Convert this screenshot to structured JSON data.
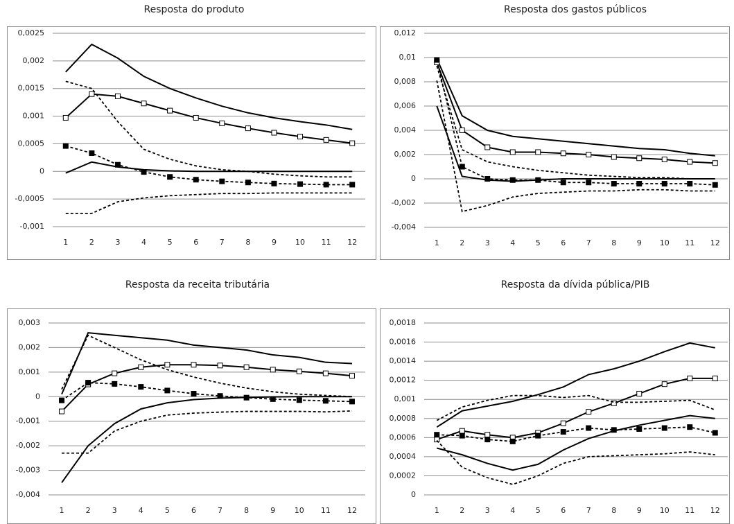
{
  "chart_data": [
    {
      "type": "line",
      "title": "Resposta do produto",
      "categories": [
        "1",
        "2",
        "3",
        "4",
        "5",
        "6",
        "7",
        "8",
        "9",
        "10",
        "11",
        "12"
      ],
      "ylim": [
        -0.001,
        0.0025
      ],
      "yticks": [
        {
          "value": -0.001,
          "label": "-0,001"
        },
        {
          "value": -0.0005,
          "label": "-0,0005"
        },
        0,
        {
          "value": 0.0005,
          "label": "0,0005"
        },
        {
          "value": 0.001,
          "label": "0,001"
        },
        {
          "value": 0.0015,
          "label": "0,0015"
        },
        {
          "value": 0.002,
          "label": "0,002"
        },
        {
          "value": 0.0025,
          "label": "0,0025"
        }
      ],
      "grid": true,
      "series": [
        {
          "color": "#000000",
          "style": "solid",
          "values": [
            0.0018,
            0.0023,
            0.00205,
            0.00172,
            0.0015,
            0.00133,
            0.00118,
            0.00106,
            0.00097,
            0.0009,
            0.00084,
            0.00076
          ]
        },
        {
          "color": "#000000",
          "style": "solid",
          "marker": "open-square",
          "values": [
            0.00097,
            0.0014,
            0.00136,
            0.00123,
            0.0011,
            0.00097,
            0.00087,
            0.00078,
            0.0007,
            0.00063,
            0.00057,
            0.00051
          ]
        },
        {
          "color": "#000000",
          "style": "solid",
          "values": [
            -3e-05,
            0.00017,
            8e-05,
            3e-05,
            1e-05,
            0,
            0,
            0,
            0,
            0,
            0,
            0
          ]
        },
        {
          "color": "#000000",
          "style": "dashed",
          "values": [
            0.00163,
            0.0015,
            0.0009,
            0.0004,
            0.00022,
            0.0001,
            3e-05,
            0,
            -5e-05,
            -8e-05,
            -0.0001,
            -0.0001
          ]
        },
        {
          "color": "#000000",
          "style": "dashed",
          "marker": "filled-square",
          "values": [
            0.00046,
            0.00033,
            0.00012,
            -1e-05,
            -0.0001,
            -0.00015,
            -0.00018,
            -0.0002,
            -0.00022,
            -0.00023,
            -0.00024,
            -0.00024
          ]
        },
        {
          "color": "#000000",
          "style": "dashed",
          "values": [
            -0.00076,
            -0.00076,
            -0.00055,
            -0.00048,
            -0.00044,
            -0.00042,
            -0.0004,
            -0.0004,
            -0.00039,
            -0.00039,
            -0.00039,
            -0.00039
          ]
        }
      ]
    },
    {
      "type": "line",
      "title": "Resposta dos gastos públicos",
      "categories": [
        "1",
        "2",
        "3",
        "4",
        "5",
        "6",
        "7",
        "8",
        "9",
        "10",
        "11",
        "12"
      ],
      "ylim": [
        -0.004,
        0.012
      ],
      "yticks": [
        {
          "value": -0.004,
          "label": "-0,004"
        },
        {
          "value": -0.002,
          "label": "-0,002"
        },
        0,
        {
          "value": 0.002,
          "label": "0,002"
        },
        {
          "value": 0.004,
          "label": "0,004"
        },
        {
          "value": 0.006,
          "label": "0,006"
        },
        {
          "value": 0.008,
          "label": "0,008"
        },
        {
          "value": 0.01,
          "label": "0,01"
        },
        {
          "value": 0.012,
          "label": "0,012"
        }
      ],
      "grid": true,
      "series": [
        {
          "color": "#000000",
          "style": "solid",
          "values": [
            0.0099,
            0.0052,
            0.004,
            0.0035,
            0.0033,
            0.0031,
            0.0029,
            0.0027,
            0.0025,
            0.0024,
            0.0021,
            0.0019
          ]
        },
        {
          "color": "#000000",
          "style": "solid",
          "marker": "open-square",
          "values": [
            0.0096,
            0.004,
            0.0026,
            0.0022,
            0.0022,
            0.0021,
            0.002,
            0.0018,
            0.0017,
            0.0016,
            0.0014,
            0.0013
          ]
        },
        {
          "color": "#000000",
          "style": "solid",
          "values": [
            0.006,
            0.0002,
            -0.0001,
            -0.0002,
            -0.0001,
            0,
            0,
            0,
            0,
            0,
            0,
            0
          ]
        },
        {
          "color": "#000000",
          "style": "dashed",
          "values": [
            0.0093,
            0.0024,
            0.0014,
            0.001,
            0.0007,
            0.0005,
            0.0003,
            0.0002,
            0.0001,
            0.0001,
            0,
            0
          ]
        },
        {
          "color": "#000000",
          "style": "dashed",
          "marker": "filled-square",
          "values": [
            0.0098,
            0.001,
            0,
            -0.0001,
            -0.0001,
            -0.0003,
            -0.0003,
            -0.0004,
            -0.0004,
            -0.0004,
            -0.0004,
            -0.0005
          ]
        },
        {
          "color": "#000000",
          "style": "dashed",
          "values": [
            0.0081,
            -0.0027,
            -0.0022,
            -0.0015,
            -0.0012,
            -0.0011,
            -0.001,
            -0.001,
            -0.0009,
            -0.0009,
            -0.001,
            -0.001
          ]
        }
      ]
    },
    {
      "type": "line",
      "title": "Resposta da receita tributária",
      "categories": [
        "1",
        "2",
        "3",
        "4",
        "5",
        "6",
        "7",
        "8",
        "9",
        "10",
        "11",
        "12"
      ],
      "ylim": [
        -0.004,
        0.003
      ],
      "yticks": [
        {
          "value": -0.004,
          "label": "-0,004"
        },
        {
          "value": -0.003,
          "label": "-0,003"
        },
        {
          "value": -0.002,
          "label": "-0,002"
        },
        {
          "value": -0.001,
          "label": "-0,001"
        },
        0,
        {
          "value": 0.001,
          "label": "0,001"
        },
        {
          "value": 0.002,
          "label": "0,002"
        },
        {
          "value": 0.003,
          "label": "0,003"
        }
      ],
      "grid": true,
      "series": [
        {
          "color": "#000000",
          "style": "solid",
          "values": [
            0.0001,
            0.0026,
            0.0025,
            0.0024,
            0.0023,
            0.0021,
            0.002,
            0.0019,
            0.0017,
            0.0016,
            0.0014,
            0.00135
          ]
        },
        {
          "color": "#000000",
          "style": "solid",
          "marker": "open-square",
          "values": [
            -0.0006,
            0.0005,
            0.00095,
            0.0012,
            0.0013,
            0.0013,
            0.00127,
            0.0012,
            0.0011,
            0.00103,
            0.00095,
            0.00085
          ]
        },
        {
          "color": "#000000",
          "style": "solid",
          "values": [
            -0.0035,
            -0.002,
            -0.0011,
            -0.0005,
            -0.00025,
            -0.00012,
            -6e-05,
            -3e-05,
            -1e-05,
            0,
            0,
            0
          ]
        },
        {
          "color": "#000000",
          "style": "dashed",
          "values": [
            0.0003,
            0.0025,
            0.002,
            0.0015,
            0.0011,
            0.0008,
            0.00055,
            0.00035,
            0.0002,
            0.0001,
            5e-05,
            0
          ]
        },
        {
          "color": "#000000",
          "style": "dashed",
          "marker": "filled-square",
          "values": [
            -0.00015,
            0.00057,
            0.00052,
            0.0004,
            0.00025,
            0.00012,
            3e-05,
            -4e-05,
            -0.0001,
            -0.00014,
            -0.00017,
            -0.0002
          ]
        },
        {
          "color": "#000000",
          "style": "dashed",
          "values": [
            -0.0023,
            -0.0023,
            -0.0014,
            -0.001,
            -0.00075,
            -0.00067,
            -0.00063,
            -0.0006,
            -0.0006,
            -0.0006,
            -0.00062,
            -0.00058
          ]
        }
      ]
    },
    {
      "type": "line",
      "title": "Resposta da dívida pública/PIB",
      "categories": [
        "1",
        "2",
        "3",
        "4",
        "5",
        "6",
        "7",
        "8",
        "9",
        "10",
        "11",
        "12"
      ],
      "ylim": [
        0,
        0.0018
      ],
      "yticks": [
        0,
        {
          "value": 0.0002,
          "label": "0,0002"
        },
        {
          "value": 0.0004,
          "label": "0,0004"
        },
        {
          "value": 0.0006,
          "label": "0,0006"
        },
        {
          "value": 0.0008,
          "label": "0,0008"
        },
        {
          "value": 0.001,
          "label": "0,001"
        },
        {
          "value": 0.0012,
          "label": "0,0012"
        },
        {
          "value": 0.0014,
          "label": "0,0014"
        },
        {
          "value": 0.0016,
          "label": "0,0016"
        },
        {
          "value": 0.0018,
          "label": "0,0018"
        }
      ],
      "grid": true,
      "series": [
        {
          "color": "#000000",
          "style": "solid",
          "values": [
            0.00071,
            0.00088,
            0.00093,
            0.00098,
            0.00105,
            0.00113,
            0.00126,
            0.00132,
            0.0014,
            0.0015,
            0.00159,
            0.00154
          ]
        },
        {
          "color": "#000000",
          "style": "solid",
          "marker": "open-square",
          "values": [
            0.00058,
            0.00067,
            0.00063,
            0.0006,
            0.00065,
            0.00075,
            0.00087,
            0.00096,
            0.00106,
            0.00116,
            0.00122,
            0.00122
          ]
        },
        {
          "color": "#000000",
          "style": "solid",
          "values": [
            0.00049,
            0.00042,
            0.00033,
            0.00026,
            0.00032,
            0.00047,
            0.00059,
            0.00067,
            0.00073,
            0.00078,
            0.00083,
            0.0008
          ]
        },
        {
          "color": "#000000",
          "style": "dashed",
          "values": [
            0.00078,
            0.00092,
            0.00099,
            0.00104,
            0.00104,
            0.00102,
            0.00104,
            0.00097,
            0.00097,
            0.00098,
            0.00099,
            0.00089
          ]
        },
        {
          "color": "#000000",
          "style": "dashed",
          "marker": "filled-square",
          "values": [
            0.00063,
            0.00062,
            0.00058,
            0.00056,
            0.00062,
            0.00066,
            0.0007,
            0.00068,
            0.00069,
            0.0007,
            0.00071,
            0.00065
          ]
        },
        {
          "color": "#000000",
          "style": "dashed",
          "values": [
            0.00057,
            0.00029,
            0.00018,
            0.00011,
            0.0002,
            0.00033,
            0.0004,
            0.00041,
            0.00042,
            0.00043,
            0.00045,
            0.00042
          ]
        }
      ]
    }
  ]
}
